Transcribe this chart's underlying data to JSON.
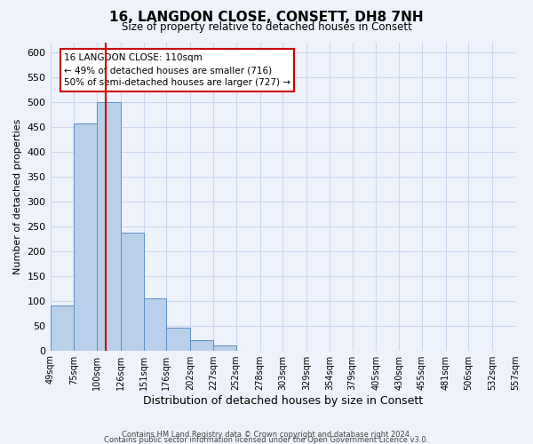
{
  "title": "16, LANGDON CLOSE, CONSETT, DH8 7NH",
  "subtitle": "Size of property relative to detached houses in Consett",
  "xlabel": "Distribution of detached houses by size in Consett",
  "ylabel": "Number of detached properties",
  "bar_values": [
    90,
    457,
    500,
    236,
    105,
    45,
    20,
    10,
    0,
    0,
    0,
    0,
    0,
    0,
    0,
    0,
    0,
    0,
    0,
    0
  ],
  "bin_edges": [
    49,
    75,
    100,
    126,
    151,
    176,
    202,
    227,
    252,
    278,
    303,
    329,
    354,
    379,
    405,
    430,
    455,
    481,
    506,
    532,
    557
  ],
  "bar_color": "#b8d0ea",
  "bar_edge_color": "#5b8fc9",
  "vline_x": 110,
  "vline_color": "#cc0000",
  "ylim": [
    0,
    620
  ],
  "yticks": [
    0,
    50,
    100,
    150,
    200,
    250,
    300,
    350,
    400,
    450,
    500,
    550,
    600
  ],
  "xtick_labels": [
    "49sqm",
    "75sqm",
    "100sqm",
    "126sqm",
    "151sqm",
    "176sqm",
    "202sqm",
    "227sqm",
    "252sqm",
    "278sqm",
    "303sqm",
    "329sqm",
    "354sqm",
    "379sqm",
    "405sqm",
    "430sqm",
    "455sqm",
    "481sqm",
    "506sqm",
    "532sqm",
    "557sqm"
  ],
  "annotation_line1": "16 LANGDON CLOSE: 110sqm",
  "annotation_line2": "← 49% of detached houses are smaller (716)",
  "annotation_line3": "50% of semi-detached houses are larger (727) →",
  "bg_color": "#eef2fb",
  "grid_color": "#ccd6ee",
  "footer1": "Contains HM Land Registry data © Crown copyright and database right 2024.",
  "footer2": "Contains public sector information licensed under the Open Government Licence v3.0."
}
